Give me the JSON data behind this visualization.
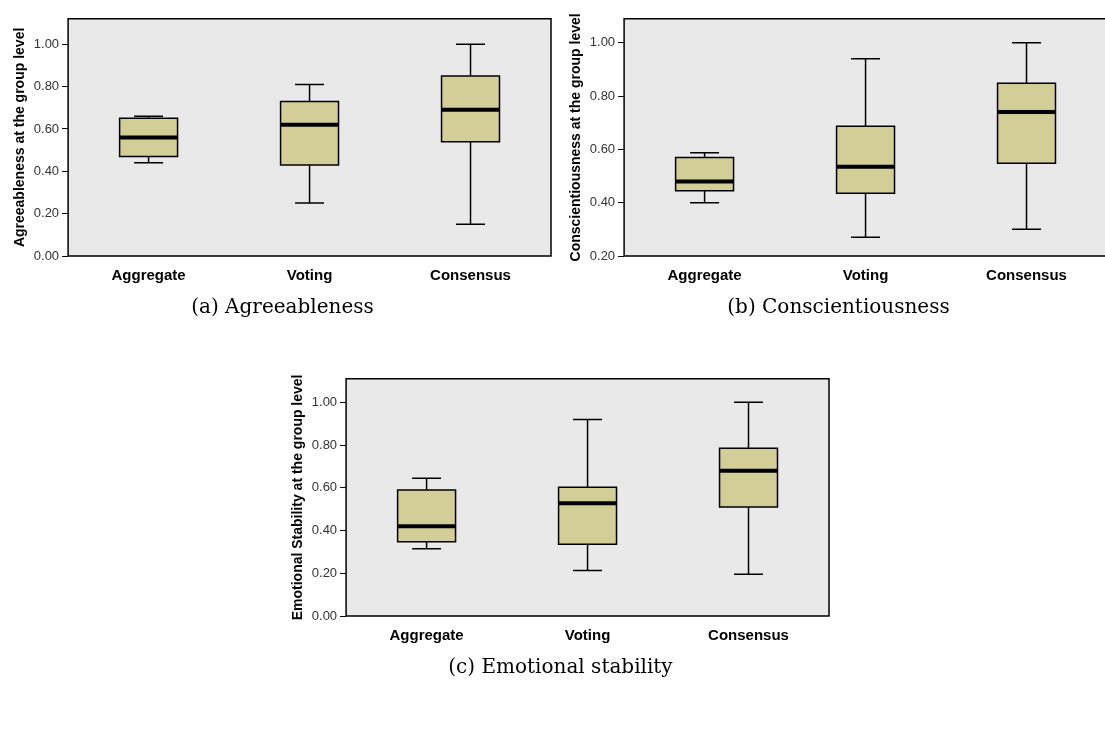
{
  "chart_data": [
    {
      "type": "box",
      "title": "(a) Agreeableness",
      "ylabel": "Agreeableness at the group level",
      "categories": [
        "Aggregate",
        "Voting",
        "Consensus"
      ],
      "color": "#d3cd98",
      "grid": false,
      "ylim": [
        0,
        1.12
      ],
      "yticks": [
        {
          "value": 0,
          "label": "0.00"
        },
        {
          "value": 0.2,
          "label": "0.20"
        },
        {
          "value": 0.4,
          "label": "0.40"
        },
        {
          "value": 0.6,
          "label": "0.60"
        },
        {
          "value": 0.8,
          "label": "0.80"
        },
        {
          "value": 1,
          "label": "1.00"
        }
      ],
      "boxes": [
        {
          "low": 0.44,
          "q1": 0.47,
          "median": 0.56,
          "q3": 0.65,
          "high": 0.66
        },
        {
          "low": 0.25,
          "q1": 0.43,
          "median": 0.62,
          "q3": 0.73,
          "high": 0.81
        },
        {
          "low": 0.15,
          "q1": 0.54,
          "median": 0.69,
          "q3": 0.85,
          "high": 1.0
        }
      ]
    },
    {
      "type": "box",
      "title": "(b) Conscientiousness",
      "ylabel": "Conscientiousness at the group level",
      "categories": [
        "Aggregate",
        "Voting",
        "Consensus"
      ],
      "color": "#d3cd98",
      "grid": false,
      "ylim": [
        0.2,
        1.09
      ],
      "yticks": [
        {
          "value": 0.2,
          "label": "0.20"
        },
        {
          "value": 0.4,
          "label": "0.40"
        },
        {
          "value": 0.6,
          "label": "0.60"
        },
        {
          "value": 0.8,
          "label": "0.80"
        },
        {
          "value": 1,
          "label": "1.00"
        }
      ],
      "boxes": [
        {
          "low": 0.4,
          "q1": 0.445,
          "median": 0.48,
          "q3": 0.57,
          "high": 0.587
        },
        {
          "low": 0.27,
          "q1": 0.435,
          "median": 0.535,
          "q3": 0.687,
          "high": 0.94
        },
        {
          "low": 0.3,
          "q1": 0.548,
          "median": 0.74,
          "q3": 0.848,
          "high": 1.0
        }
      ]
    },
    {
      "type": "box",
      "title": "(c) Emotional stability",
      "ylabel": "Emotional Stability at the group level",
      "categories": [
        "Aggregate",
        "Voting",
        "Consensus"
      ],
      "color": "#d3cd98",
      "grid": false,
      "ylim": [
        0,
        1.11
      ],
      "yticks": [
        {
          "value": 0,
          "label": "0.00"
        },
        {
          "value": 0.2,
          "label": "0.20"
        },
        {
          "value": 0.4,
          "label": "0.40"
        },
        {
          "value": 0.6,
          "label": "0.60"
        },
        {
          "value": 0.8,
          "label": "0.80"
        },
        {
          "value": 1,
          "label": "1.00"
        }
      ],
      "boxes": [
        {
          "low": 0.315,
          "q1": 0.348,
          "median": 0.42,
          "q3": 0.59,
          "high": 0.645
        },
        {
          "low": 0.213,
          "q1": 0.336,
          "median": 0.528,
          "q3": 0.603,
          "high": 0.92
        },
        {
          "low": 0.195,
          "q1": 0.51,
          "median": 0.68,
          "q3": 0.785,
          "high": 1.0
        }
      ]
    }
  ]
}
